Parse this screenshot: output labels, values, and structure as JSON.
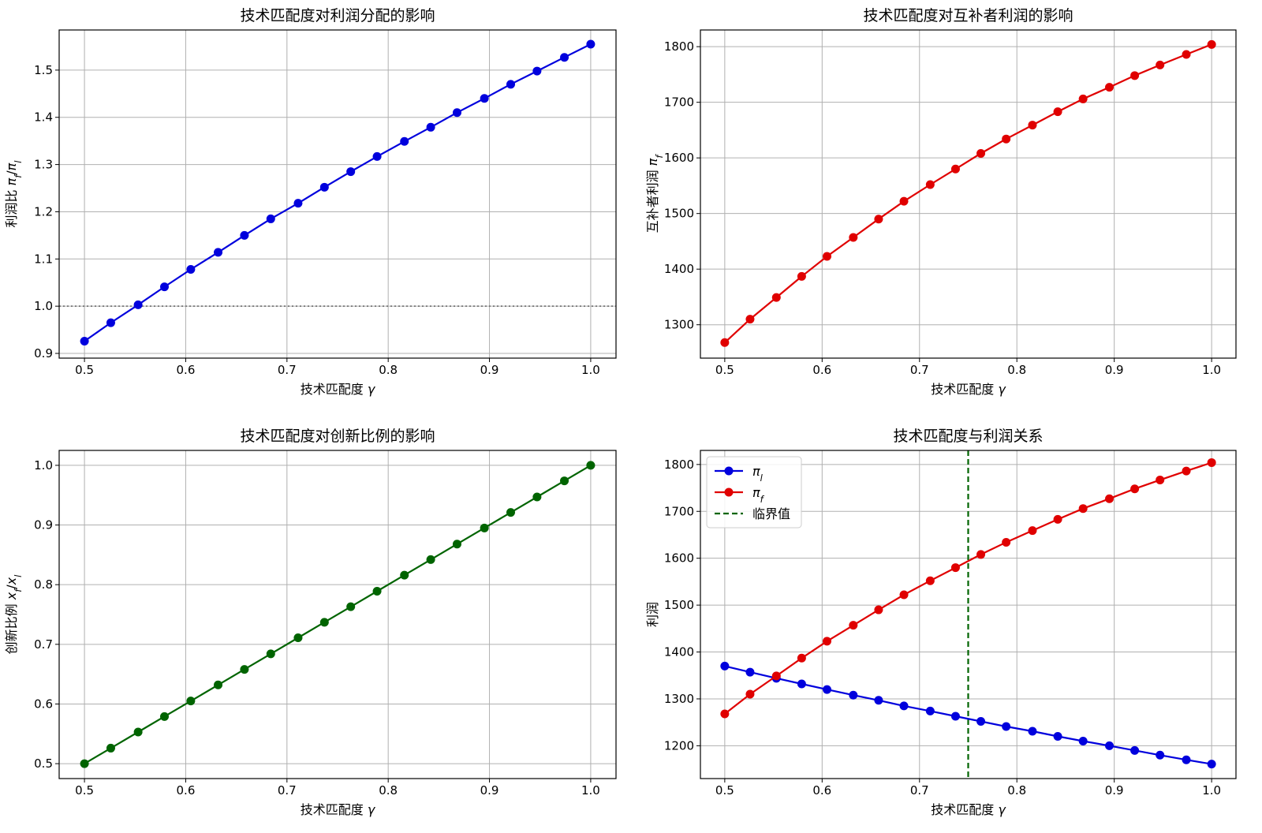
{
  "chart_data": [
    {
      "type": "line",
      "title": "技术匹配度对利润分配的影响",
      "xlabel": "技术匹配度 γ",
      "ylabel": "利润比 π_f/π_l",
      "xlim": [
        0.475,
        1.025
      ],
      "ylim": [
        0.89,
        1.585
      ],
      "xticks": [
        0.5,
        0.6,
        0.7,
        0.8,
        0.9,
        1.0
      ],
      "xtick_labels": [
        "0.5",
        "0.6",
        "0.7",
        "0.8",
        "0.9",
        "1.0"
      ],
      "yticks": [
        0.9,
        1.0,
        1.1,
        1.2,
        1.3,
        1.4,
        1.5
      ],
      "ytick_labels": [
        "0.9",
        "1.0",
        "1.1",
        "1.2",
        "1.3",
        "1.4",
        "1.5"
      ],
      "grid": true,
      "hline": {
        "y": 1.0,
        "color": "#777777",
        "style": "dotted"
      },
      "x": [
        0.5,
        0.526,
        0.553,
        0.579,
        0.605,
        0.632,
        0.658,
        0.684,
        0.711,
        0.737,
        0.763,
        0.789,
        0.816,
        0.842,
        0.868,
        0.895,
        0.921,
        0.947,
        0.974,
        1.0
      ],
      "series": [
        {
          "color": "#0000dd",
          "values": [
            0.926,
            0.965,
            1.003,
            1.041,
            1.078,
            1.114,
            1.15,
            1.185,
            1.218,
            1.252,
            1.285,
            1.317,
            1.349,
            1.379,
            1.41,
            1.44,
            1.47,
            1.498,
            1.527,
            1.555
          ]
        }
      ]
    },
    {
      "type": "line",
      "title": "技术匹配度对互补者利润的影响",
      "xlabel": "技术匹配度 γ",
      "ylabel": "互补者利润 π_f",
      "xlim": [
        0.475,
        1.025
      ],
      "ylim": [
        1240,
        1830
      ],
      "xticks": [
        0.5,
        0.6,
        0.7,
        0.8,
        0.9,
        1.0
      ],
      "xtick_labels": [
        "0.5",
        "0.6",
        "0.7",
        "0.8",
        "0.9",
        "1.0"
      ],
      "yticks": [
        1300,
        1400,
        1500,
        1600,
        1700,
        1800
      ],
      "ytick_labels": [
        "1300",
        "1400",
        "1500",
        "1600",
        "1700",
        "1800"
      ],
      "grid": true,
      "x": [
        0.5,
        0.526,
        0.553,
        0.579,
        0.605,
        0.632,
        0.658,
        0.684,
        0.711,
        0.737,
        0.763,
        0.789,
        0.816,
        0.842,
        0.868,
        0.895,
        0.921,
        0.947,
        0.974,
        1.0
      ],
      "series": [
        {
          "color": "#e00000",
          "values": [
            1268,
            1310,
            1349,
            1387,
            1423,
            1457,
            1490,
            1522,
            1552,
            1580,
            1608,
            1634,
            1659,
            1683,
            1706,
            1727,
            1748,
            1767,
            1786,
            1804
          ]
        }
      ]
    },
    {
      "type": "line",
      "title": "技术匹配度对创新比例的影响",
      "xlabel": "技术匹配度 γ",
      "ylabel": "创新比例 x_f/x_l",
      "xlim": [
        0.475,
        1.025
      ],
      "ylim": [
        0.475,
        1.025
      ],
      "xticks": [
        0.5,
        0.6,
        0.7,
        0.8,
        0.9,
        1.0
      ],
      "xtick_labels": [
        "0.5",
        "0.6",
        "0.7",
        "0.8",
        "0.9",
        "1.0"
      ],
      "yticks": [
        0.5,
        0.6,
        0.7,
        0.8,
        0.9,
        1.0
      ],
      "ytick_labels": [
        "0.5",
        "0.6",
        "0.7",
        "0.8",
        "0.9",
        "1.0"
      ],
      "grid": true,
      "x": [
        0.5,
        0.526,
        0.553,
        0.579,
        0.605,
        0.632,
        0.658,
        0.684,
        0.711,
        0.737,
        0.763,
        0.789,
        0.816,
        0.842,
        0.868,
        0.895,
        0.921,
        0.947,
        0.974,
        1.0
      ],
      "series": [
        {
          "color": "#006400",
          "values": [
            0.5,
            0.526,
            0.553,
            0.579,
            0.605,
            0.632,
            0.658,
            0.684,
            0.711,
            0.737,
            0.763,
            0.789,
            0.816,
            0.842,
            0.868,
            0.895,
            0.921,
            0.947,
            0.974,
            1.0
          ]
        }
      ]
    },
    {
      "type": "line",
      "title": "技术匹配度与利润关系",
      "xlabel": "技术匹配度 γ",
      "ylabel": "利润",
      "xlim": [
        0.475,
        1.025
      ],
      "ylim": [
        1130,
        1830
      ],
      "xticks": [
        0.5,
        0.6,
        0.7,
        0.8,
        0.9,
        1.0
      ],
      "xtick_labels": [
        "0.5",
        "0.6",
        "0.7",
        "0.8",
        "0.9",
        "1.0"
      ],
      "yticks": [
        1200,
        1300,
        1400,
        1500,
        1600,
        1700,
        1800
      ],
      "ytick_labels": [
        "1200",
        "1300",
        "1400",
        "1500",
        "1600",
        "1700",
        "1800"
      ],
      "grid": true,
      "vline": {
        "x": 0.75,
        "color": "#006400",
        "style": "dashed"
      },
      "legend_position": "top-left",
      "x": [
        0.5,
        0.526,
        0.553,
        0.579,
        0.605,
        0.632,
        0.658,
        0.684,
        0.711,
        0.737,
        0.763,
        0.789,
        0.816,
        0.842,
        0.868,
        0.895,
        0.921,
        0.947,
        0.974,
        1.0
      ],
      "series": [
        {
          "name": "π_l",
          "color": "#0000dd",
          "values": [
            1370,
            1357,
            1344,
            1332,
            1320,
            1308,
            1297,
            1285,
            1274,
            1263,
            1252,
            1241,
            1231,
            1220,
            1210,
            1200,
            1190,
            1180,
            1170,
            1161
          ]
        },
        {
          "name": "π_f",
          "color": "#e00000",
          "values": [
            1268,
            1310,
            1349,
            1387,
            1423,
            1457,
            1490,
            1522,
            1552,
            1580,
            1608,
            1634,
            1659,
            1683,
            1706,
            1727,
            1748,
            1767,
            1786,
            1804
          ]
        }
      ],
      "legend": [
        {
          "label": "π_l",
          "color": "#0000dd",
          "style": "line-marker"
        },
        {
          "label": "π_f",
          "color": "#e00000",
          "style": "line-marker"
        },
        {
          "label": "临界值",
          "color": "#006400",
          "style": "dashed"
        }
      ]
    }
  ]
}
